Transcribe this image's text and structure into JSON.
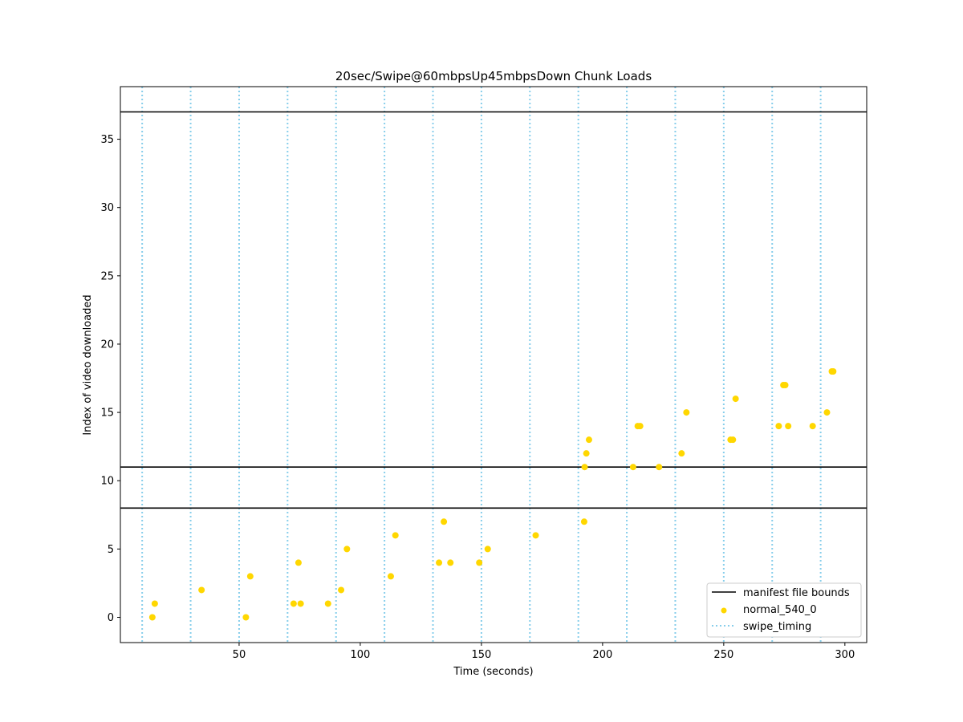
{
  "chart_data": {
    "type": "scatter",
    "title": "20sec/Swipe@60mbpsUp45mbpsDown Chunk Loads",
    "xlabel": "Time (seconds)",
    "ylabel": "Index of video downloaded",
    "xlim": [
      1,
      309
    ],
    "ylim": [
      -1.85,
      38.85
    ],
    "xticks": [
      50,
      100,
      150,
      200,
      250,
      300
    ],
    "yticks": [
      0,
      5,
      10,
      15,
      20,
      25,
      30,
      35
    ],
    "grid": false,
    "legend_position": "lower right",
    "manifest_bounds": {
      "name": "manifest file bounds",
      "color": "#000000",
      "values": [
        8,
        11,
        37
      ]
    },
    "swipe_timing": {
      "name": "swipe_timing",
      "color": "#87ceeb",
      "values": [
        10,
        30,
        50,
        70,
        90,
        110,
        130,
        150,
        170,
        190,
        210,
        230,
        250,
        270,
        290
      ]
    },
    "series": [
      {
        "name": "normal_540_0",
        "color": "#ffd700",
        "points": [
          [
            14.2,
            0
          ],
          [
            15.2,
            1
          ],
          [
            34.5,
            2
          ],
          [
            52.8,
            0
          ],
          [
            54.6,
            3
          ],
          [
            72.5,
            1
          ],
          [
            74.5,
            4
          ],
          [
            75.4,
            1
          ],
          [
            86.7,
            1
          ],
          [
            92.1,
            2
          ],
          [
            94.5,
            5
          ],
          [
            112.6,
            3
          ],
          [
            114.5,
            6
          ],
          [
            132.5,
            4
          ],
          [
            134.5,
            7
          ],
          [
            137.2,
            4
          ],
          [
            149.1,
            4
          ],
          [
            152.6,
            5
          ],
          [
            172.4,
            6
          ],
          [
            192.4,
            7
          ],
          [
            192.6,
            11
          ],
          [
            193.3,
            12
          ],
          [
            194.4,
            13
          ],
          [
            212.6,
            11
          ],
          [
            214.5,
            14
          ],
          [
            215.5,
            14
          ],
          [
            223.3,
            11
          ],
          [
            232.6,
            12
          ],
          [
            234.6,
            15
          ],
          [
            252.8,
            13
          ],
          [
            253.8,
            13
          ],
          [
            254.9,
            16
          ],
          [
            272.7,
            14
          ],
          [
            274.6,
            17
          ],
          [
            275.4,
            17
          ],
          [
            276.6,
            14
          ],
          [
            286.7,
            14
          ],
          [
            292.6,
            15
          ],
          [
            294.6,
            18
          ],
          [
            295.2,
            18
          ]
        ]
      }
    ]
  }
}
